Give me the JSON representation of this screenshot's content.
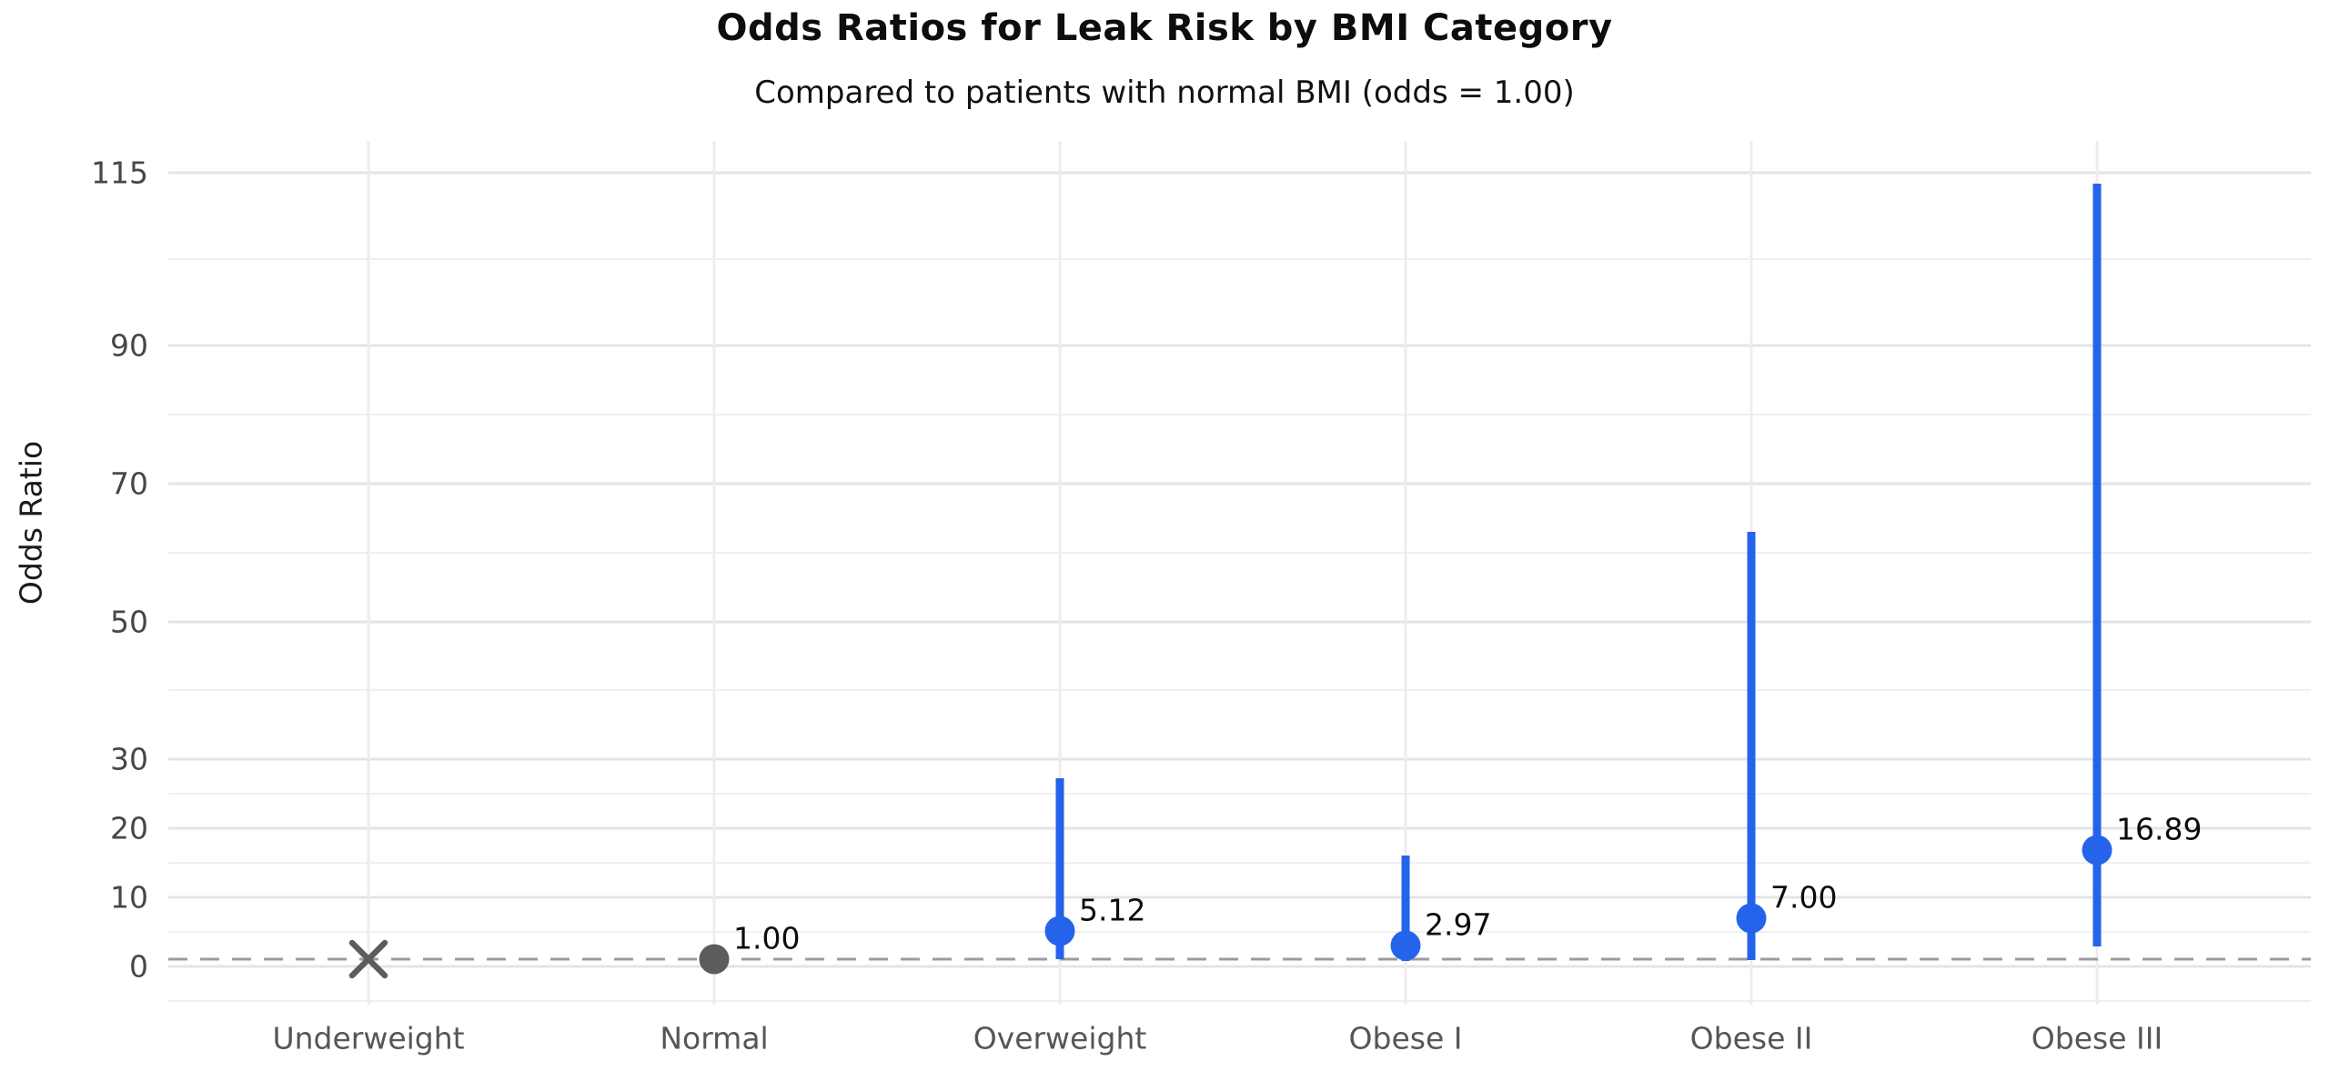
{
  "chart_data": {
    "type": "scatter",
    "subtype": "forest-plot-odds-ratios-with-95ci",
    "title": "Odds Ratios for Leak Risk by BMI Category",
    "subtitle": "Compared to patients with normal BMI (odds = 1.00)",
    "xlabel": "",
    "ylabel": "Odds Ratio",
    "categories": [
      "Underweight",
      "Normal",
      "Overweight",
      "Obese I",
      "Obese II",
      "Obese III"
    ],
    "points": [
      {
        "category": "Underweight",
        "odds_ratio": 1.0,
        "label": "",
        "ci_low": null,
        "ci_high": null,
        "marker": "x",
        "role": "reference"
      },
      {
        "category": "Normal",
        "odds_ratio": 1.0,
        "label": "1.00",
        "ci_low": null,
        "ci_high": null,
        "marker": "circle",
        "role": "reference"
      },
      {
        "category": "Overweight",
        "odds_ratio": 5.12,
        "label": "5.12",
        "ci_low": 1.02,
        "ci_high": 27.3,
        "marker": "circle",
        "role": "risk"
      },
      {
        "category": "Obese I",
        "odds_ratio": 2.97,
        "label": "2.97",
        "ci_low": 0.75,
        "ci_high": 16.1,
        "marker": "circle",
        "role": "risk"
      },
      {
        "category": "Obese II",
        "odds_ratio": 7.0,
        "label": "7.00",
        "ci_low": 0.9,
        "ci_high": 63.0,
        "marker": "circle",
        "role": "risk"
      },
      {
        "category": "Obese III",
        "odds_ratio": 16.89,
        "label": "16.89",
        "ci_low": 2.85,
        "ci_high": 113.5,
        "marker": "circle",
        "role": "risk"
      }
    ],
    "y_axis": {
      "major_ticks": [
        0,
        10,
        20,
        30,
        50,
        70,
        90,
        115
      ],
      "minor_gridlines": [
        -5,
        5,
        15,
        25,
        40,
        60,
        80,
        102.5
      ],
      "ylim": [
        -5.5,
        119.6
      ]
    },
    "reference_line": {
      "value": 1.0,
      "style": "dashed"
    },
    "grid": true,
    "legend": false,
    "colors": {
      "risk": "#2563eb",
      "reference": "#5c5c5c",
      "reference_line": "#9b9b9b",
      "grid_major": "#e4e4e4",
      "grid_minor": "#f0f0f0",
      "tick_label": "#474747",
      "category_label": "#565656",
      "value_label": "#0c0c0c"
    }
  }
}
